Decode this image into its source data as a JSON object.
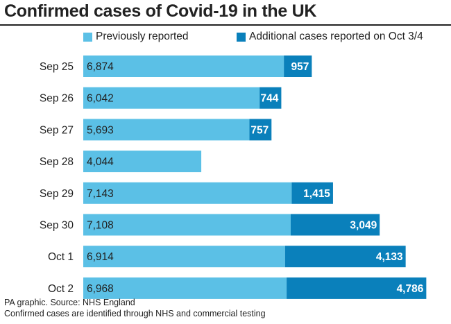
{
  "chart_data": {
    "type": "bar",
    "orientation": "horizontal",
    "stacked": true,
    "title": "Confirmed cases of Covid-19 in the UK",
    "categories": [
      "Sep 25",
      "Sep 26",
      "Sep 27",
      "Sep 28",
      "Sep 29",
      "Sep 30",
      "Oct 1",
      "Oct 2"
    ],
    "series": [
      {
        "name": "Previously reported",
        "color": "#5bc0e6",
        "values": [
          6874,
          6042,
          5693,
          4044,
          7143,
          7108,
          6914,
          6968
        ],
        "labels": [
          "6,874",
          "6,042",
          "5,693",
          "4,044",
          "7,143",
          "7,108",
          "6,914",
          "6,968"
        ]
      },
      {
        "name": "Additional cases reported on Oct 3/4",
        "color": "#0a80bb",
        "values": [
          957,
          744,
          757,
          0,
          1415,
          3049,
          4133,
          4786
        ],
        "labels": [
          "957",
          "744",
          "757",
          "",
          "1,415",
          "3,049",
          "4,133",
          "4,786"
        ]
      }
    ],
    "legend_position": "top",
    "grid": false
  },
  "footer": {
    "source": "PA graphic. Source: NHS England",
    "note": "Confirmed cases are identified through NHS and commercial testing"
  }
}
